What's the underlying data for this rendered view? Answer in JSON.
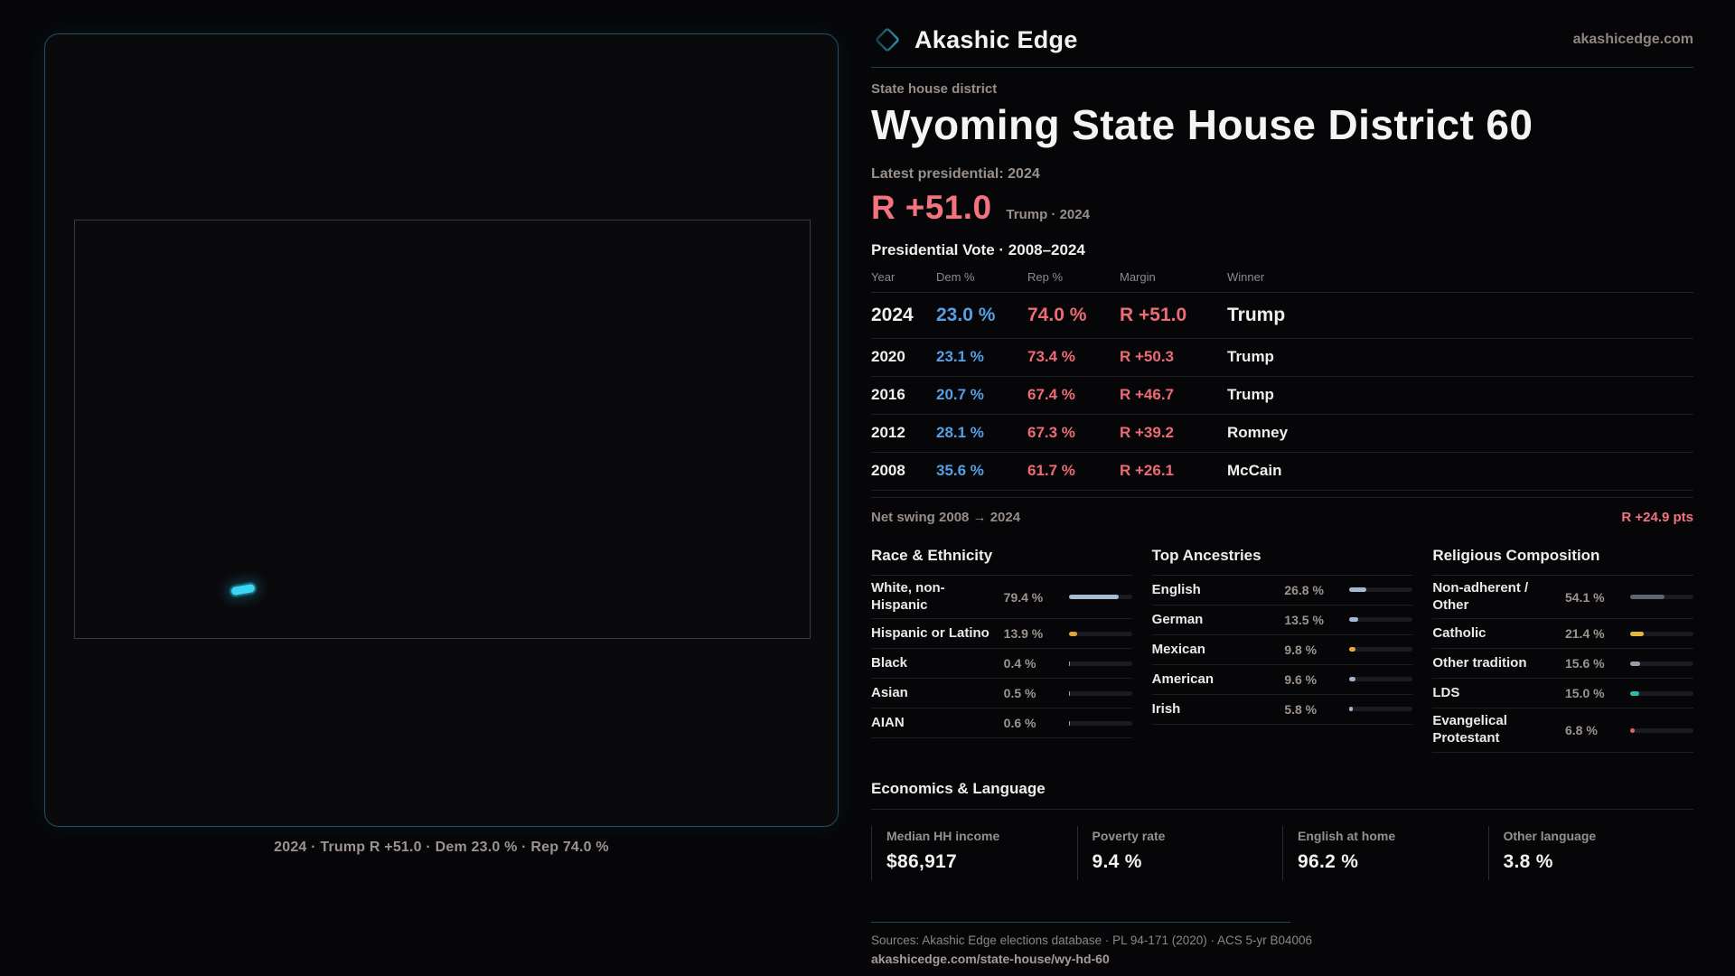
{
  "header": {
    "brand": "Akashic Edge",
    "brand_icon": "diamond-outline",
    "site": "akashicedge.com"
  },
  "district": {
    "category": "State house district",
    "title": "Wyoming State House District 60",
    "latest_label": "Latest presidential: 2024",
    "headline_margin": "R +51.0",
    "headline_detail": "Trump · 2024"
  },
  "vote_table": {
    "title": "Presidential Vote · 2008–2024",
    "columns": {
      "year": "Year",
      "dem": "Dem %",
      "rep": "Rep %",
      "margin": "Margin",
      "winner": "Winner"
    },
    "rows": [
      {
        "year": "2024",
        "dem": "23.0 %",
        "rep": "74.0 %",
        "margin": "R +51.0",
        "winner": "Trump",
        "latest": true
      },
      {
        "year": "2020",
        "dem": "23.1 %",
        "rep": "73.4 %",
        "margin": "R +50.3",
        "winner": "Trump",
        "latest": false
      },
      {
        "year": "2016",
        "dem": "20.7 %",
        "rep": "67.4 %",
        "margin": "R +46.7",
        "winner": "Trump",
        "latest": false
      },
      {
        "year": "2012",
        "dem": "28.1 %",
        "rep": "67.3 %",
        "margin": "R +39.2",
        "winner": "Romney",
        "latest": false
      },
      {
        "year": "2008",
        "dem": "35.6 %",
        "rep": "61.7 %",
        "margin": "R +26.1",
        "winner": "McCain",
        "latest": false
      }
    ],
    "net_swing_label": "Net swing 2008 → 2024",
    "net_swing_value": "R +24.9 pts"
  },
  "sections": [
    {
      "title": "Race & Ethnicity",
      "rows": [
        {
          "label": "White, non-Hispanic",
          "value": "79.4 %",
          "pct": 79.4,
          "color": "#a6bbd4"
        },
        {
          "label": "Hispanic or Latino",
          "value": "13.9 %",
          "pct": 13.9,
          "color": "#e2a23c"
        },
        {
          "label": "Black",
          "value": "0.4 %",
          "pct": 0.4,
          "color": "#9aa5b2"
        },
        {
          "label": "Asian",
          "value": "0.5 %",
          "pct": 0.5,
          "color": "#9aa5b2"
        },
        {
          "label": "AIAN",
          "value": "0.6 %",
          "pct": 0.6,
          "color": "#9aa5b2"
        }
      ]
    },
    {
      "title": "Top Ancestries",
      "rows": [
        {
          "label": "English",
          "value": "26.8 %",
          "pct": 26.8,
          "color": "#a3b8d1"
        },
        {
          "label": "German",
          "value": "13.5 %",
          "pct": 13.5,
          "color": "#a3b8d1"
        },
        {
          "label": "Mexican",
          "value": "9.8 %",
          "pct": 9.8,
          "color": "#e8a93c"
        },
        {
          "label": "American",
          "value": "9.6 %",
          "pct": 9.6,
          "color": "#9fb3cc"
        },
        {
          "label": "Irish",
          "value": "5.8 %",
          "pct": 5.8,
          "color": "#9fb3cc"
        }
      ]
    },
    {
      "title": "Religious Composition",
      "rows": [
        {
          "label": "Non-adherent / Other",
          "value": "54.1 %",
          "pct": 54.1,
          "color": "#5d6572"
        },
        {
          "label": "Catholic",
          "value": "21.4 %",
          "pct": 21.4,
          "color": "#e3b73e"
        },
        {
          "label": "Other tradition",
          "value": "15.6 %",
          "pct": 15.6,
          "color": "#939eac"
        },
        {
          "label": "LDS",
          "value": "15.0 %",
          "pct": 15.0,
          "color": "#2bbcad"
        },
        {
          "label": "Evangelical Protestant",
          "value": "6.8 %",
          "pct": 6.8,
          "color": "#e26169"
        }
      ]
    }
  ],
  "economics": {
    "title": "Economics & Language",
    "stats": [
      {
        "label": "Median HH income",
        "value": "$86,917"
      },
      {
        "label": "Poverty rate",
        "value": "9.4 %"
      },
      {
        "label": "English at home",
        "value": "96.2 %"
      },
      {
        "label": "Other language",
        "value": "3.8 %"
      }
    ]
  },
  "map": {
    "caption": "2024 · Trump R +51.0 · Dem 23.0 % · Rep 74.0 %"
  },
  "footer": {
    "sources": "Sources: Akashic Edge elections database · PL 94-171 (2020) · ACS 5-yr B04006",
    "permalink": "akashicedge.com/state-house/wy-hd-60"
  },
  "colors": {
    "dem_blue": "#559fe4",
    "rep_red": "#ec6b74",
    "accent_salmon": "#f3737f",
    "accent_teal": "#1f5260",
    "district_cyan": "#3ad7f3"
  },
  "chart_data": [
    {
      "type": "table",
      "title": "Presidential Vote · 2008–2024",
      "columns": [
        "Year",
        "Dem %",
        "Rep %",
        "Margin",
        "Winner"
      ],
      "rows": [
        [
          "2024",
          23.0,
          74.0,
          "R +51.0",
          "Trump"
        ],
        [
          "2020",
          23.1,
          73.4,
          "R +50.3",
          "Trump"
        ],
        [
          "2016",
          20.7,
          67.4,
          "R +46.7",
          "Trump"
        ],
        [
          "2012",
          28.1,
          67.3,
          "R +39.2",
          "Romney"
        ],
        [
          "2008",
          35.6,
          61.7,
          "R +26.1",
          "McCain"
        ]
      ]
    },
    {
      "type": "bar",
      "title": "Race & Ethnicity",
      "categories": [
        "White, non-Hispanic",
        "Hispanic or Latino",
        "Black",
        "Asian",
        "AIAN"
      ],
      "values": [
        79.4,
        13.9,
        0.4,
        0.5,
        0.6
      ],
      "xlim": [
        0,
        100
      ]
    },
    {
      "type": "bar",
      "title": "Top Ancestries",
      "categories": [
        "English",
        "German",
        "Mexican",
        "American",
        "Irish"
      ],
      "values": [
        26.8,
        13.5,
        9.8,
        9.6,
        5.8
      ],
      "xlim": [
        0,
        100
      ]
    },
    {
      "type": "bar",
      "title": "Religious Composition",
      "categories": [
        "Non-adherent / Other",
        "Catholic",
        "Other tradition",
        "LDS",
        "Evangelical Protestant"
      ],
      "values": [
        54.1,
        21.4,
        15.6,
        15.0,
        6.8
      ],
      "xlim": [
        0,
        100
      ]
    }
  ]
}
